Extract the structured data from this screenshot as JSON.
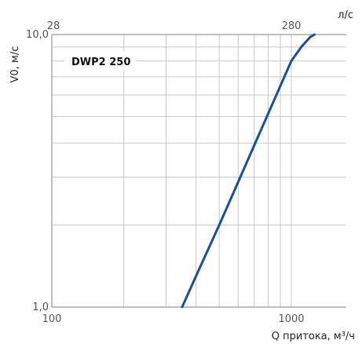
{
  "chart_data": {
    "type": "line",
    "series_label": "DWP2 250",
    "xlabel": "Q притока, м³/ч",
    "ylabel": "V0, м/с",
    "top_unit": "л/с",
    "x_scale": "log",
    "y_scale": "log",
    "xlim": [
      100,
      1300
    ],
    "ylim": [
      1.0,
      10.0
    ],
    "x_tick_labels": [
      "100",
      "1000"
    ],
    "y_tick_labels": [
      "1,0",
      "10,0"
    ],
    "top_tick_labels": [
      "28",
      "280"
    ],
    "grid": true,
    "series": [
      {
        "name": "DWP2 250",
        "color": "#1a4f9a",
        "x": [
          350,
          400,
          500,
          600,
          700,
          800,
          900,
          1000,
          1100,
          1200,
          1250
        ],
        "y": [
          1.0,
          1.3,
          2.0,
          2.88,
          3.92,
          5.12,
          6.48,
          8.0,
          9.0,
          9.8,
          10.0
        ]
      }
    ]
  }
}
